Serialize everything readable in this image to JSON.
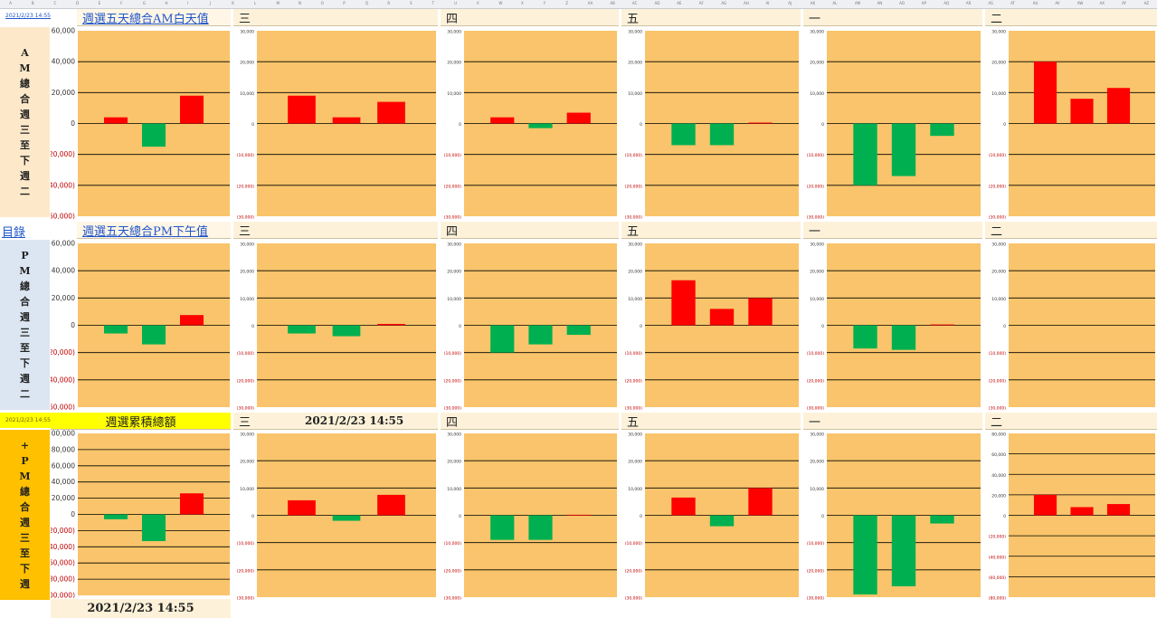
{
  "sheet": {
    "column_letters": [
      "A",
      "B",
      "C",
      "D",
      "E",
      "F",
      "G",
      "H",
      "I",
      "J",
      "K",
      "L",
      "M",
      "N",
      "O",
      "P",
      "Q",
      "R",
      "S",
      "T",
      "U",
      "V",
      "W",
      "X",
      "Y",
      "Z",
      "AA",
      "AB",
      "AC",
      "AD",
      "AE",
      "AF",
      "AG",
      "AH",
      "AI",
      "AJ",
      "AK",
      "AL",
      "AM",
      "AN",
      "AO",
      "AP",
      "AQ",
      "AR",
      "AS",
      "AT",
      "AU",
      "AV",
      "AW",
      "AX",
      "AY",
      "AZ"
    ]
  },
  "sections": [
    {
      "id": "am",
      "side_chars": [
        "A",
        "M",
        "總",
        "合",
        "週",
        "三",
        "至",
        "下",
        "週",
        "二"
      ],
      "side_bg": "#fde9c9",
      "corner_text": "2021/2/23 14:55",
      "corner_color": "#1f55c9",
      "main_title": "週選五天總合AM白天值",
      "title_bg": "#fff6e6",
      "day_labels": [
        "三",
        "四",
        "五",
        "一",
        "二"
      ]
    },
    {
      "id": "pm",
      "side_chars": [
        "P",
        "M",
        "總",
        "合",
        "週",
        "三",
        "至",
        "下",
        "週",
        "二"
      ],
      "side_bg": "#dce6f2",
      "corner_text": "目錄",
      "corner_color": "#1f55c9",
      "main_title": "週選五天總合PM下午值",
      "title_bg": "#fff6e6",
      "day_labels": [
        "三",
        "四",
        "五",
        "一",
        "二"
      ]
    },
    {
      "id": "total",
      "side_chars": [
        "+",
        "P",
        "M",
        "總",
        "合",
        "週",
        "三",
        "至",
        "下",
        "週"
      ],
      "side_bg": "#ffc000",
      "corner_text": "2021/2/23 14:55",
      "corner_color": "#7a5b00",
      "corner_bg": "#ffff00",
      "main_title": "週選累積總額",
      "title_bg": "#ffff00",
      "day_labels": [
        "三",
        "四",
        "五",
        "一",
        "二"
      ],
      "center_timestamp": "2021/2/23 14:55",
      "bottom_timestamp": "2021/2/23 14:55"
    }
  ],
  "colors": {
    "plot_bg": "#f9c46b",
    "positive": "#ff0000",
    "negative": "#00b050",
    "grid": "#000000",
    "neg_tick": "#c00000"
  },
  "chart_data": [
    {
      "id": "am-big",
      "type": "bar",
      "ylim": [
        -60000,
        60000
      ],
      "yticks": [
        60000,
        40000,
        20000,
        0,
        -20000,
        -40000,
        -60000
      ],
      "tick_labels": [
        "60,000",
        "40,000",
        "20,000",
        "0",
        "(20,000)",
        "(40,000)",
        "(60,000)"
      ],
      "values": [
        4000,
        -15000,
        18000
      ]
    },
    {
      "id": "am-wed",
      "type": "bar",
      "ylim": [
        -30000,
        30000
      ],
      "yticks": [
        30000,
        20000,
        10000,
        0,
        -10000,
        -20000,
        -30000
      ],
      "tick_labels": [
        "30,000",
        "20,000",
        "10,000",
        "0",
        "(10,000)",
        "(20,000)",
        "(30,000)"
      ],
      "values": [
        9000,
        2000,
        7000
      ]
    },
    {
      "id": "am-thu",
      "type": "bar",
      "ylim": [
        -30000,
        30000
      ],
      "yticks": [
        30000,
        20000,
        10000,
        0,
        -10000,
        -20000,
        -30000
      ],
      "tick_labels": [
        "30,000",
        "20,000",
        "10,000",
        "0",
        "(10,000)",
        "(20,000)",
        "(30,000)"
      ],
      "values": [
        2000,
        -1500,
        3500
      ]
    },
    {
      "id": "am-fri",
      "type": "bar",
      "ylim": [
        -30000,
        30000
      ],
      "yticks": [
        30000,
        20000,
        10000,
        0,
        -10000,
        -20000,
        -30000
      ],
      "tick_labels": [
        "30,000",
        "20,000",
        "10,000",
        "0",
        "(10,000)",
        "(20,000)",
        "(30,000)"
      ],
      "values": [
        -7000,
        -7000,
        300
      ]
    },
    {
      "id": "am-mon",
      "type": "bar",
      "ylim": [
        -30000,
        30000
      ],
      "yticks": [
        30000,
        20000,
        10000,
        0,
        -10000,
        -20000,
        -30000
      ],
      "tick_labels": [
        "30,000",
        "20,000",
        "10,000",
        "0",
        "(10,000)",
        "(20,000)",
        "(30,000)"
      ],
      "values": [
        -20000,
        -17000,
        -4000
      ]
    },
    {
      "id": "am-tue",
      "type": "bar",
      "ylim": [
        -30000,
        30000
      ],
      "yticks": [
        30000,
        20000,
        10000,
        0,
        -10000,
        -20000,
        -30000
      ],
      "tick_labels": [
        "30,000",
        "20,000",
        "10,000",
        "0",
        "(10,000)",
        "(20,000)",
        "(30,000)"
      ],
      "values": [
        20000,
        8000,
        11500
      ]
    },
    {
      "id": "pm-big",
      "type": "bar",
      "ylim": [
        -60000,
        60000
      ],
      "yticks": [
        60000,
        40000,
        20000,
        0,
        -20000,
        -40000,
        -60000
      ],
      "tick_labels": [
        "60,000",
        "40,000",
        "20,000",
        "0",
        "(20,000)",
        "(40,000)",
        "(60,000)"
      ],
      "values": [
        -6000,
        -14000,
        7500
      ]
    },
    {
      "id": "pm-wed",
      "type": "bar",
      "ylim": [
        -30000,
        30000
      ],
      "yticks": [
        30000,
        20000,
        10000,
        0,
        -10000,
        -20000,
        -30000
      ],
      "tick_labels": [
        "30,000",
        "20,000",
        "10,000",
        "0",
        "(10,000)",
        "(20,000)",
        "(30,000)"
      ],
      "values": [
        -3000,
        -4000,
        500
      ]
    },
    {
      "id": "pm-thu",
      "type": "bar",
      "ylim": [
        -30000,
        30000
      ],
      "yticks": [
        30000,
        20000,
        10000,
        0,
        -10000,
        -20000,
        -30000
      ],
      "tick_labels": [
        "30,000",
        "20,000",
        "10,000",
        "0",
        "(10,000)",
        "(20,000)",
        "(30,000)"
      ],
      "values": [
        -10000,
        -7000,
        -3500
      ]
    },
    {
      "id": "pm-fri",
      "type": "bar",
      "ylim": [
        -30000,
        30000
      ],
      "yticks": [
        30000,
        20000,
        10000,
        0,
        -10000,
        -20000,
        -30000
      ],
      "tick_labels": [
        "30,000",
        "20,000",
        "10,000",
        "0",
        "(10,000)",
        "(20,000)",
        "(30,000)"
      ],
      "values": [
        16500,
        6000,
        10000
      ]
    },
    {
      "id": "pm-mon",
      "type": "bar",
      "ylim": [
        -30000,
        30000
      ],
      "yticks": [
        30000,
        20000,
        10000,
        0,
        -10000,
        -20000,
        -30000
      ],
      "tick_labels": [
        "30,000",
        "20,000",
        "10,000",
        "0",
        "(10,000)",
        "(20,000)",
        "(30,000)"
      ],
      "values": [
        -8500,
        -9000,
        300
      ]
    },
    {
      "id": "pm-tue",
      "type": "bar",
      "ylim": [
        -30000,
        30000
      ],
      "yticks": [
        30000,
        20000,
        10000,
        0,
        -10000,
        -20000,
        -30000
      ],
      "tick_labels": [
        "30,000",
        "20,000",
        "10,000",
        "0",
        "(10,000)",
        "(20,000)",
        "(30,000)"
      ],
      "values": [
        0,
        0,
        0
      ]
    },
    {
      "id": "total-big",
      "type": "bar",
      "ylim": [
        -100000,
        100000
      ],
      "yticks": [
        100000,
        80000,
        60000,
        40000,
        20000,
        0,
        -20000,
        -40000,
        -60000,
        -80000,
        -100000
      ],
      "tick_labels": [
        "100,000",
        "80,000",
        "60,000",
        "40,000",
        "20,000",
        "0",
        "(20,000)",
        "(40,000)",
        "(60,000)",
        "(80,000)",
        "(100,000)"
      ],
      "values": [
        -6000,
        -33000,
        26000
      ]
    },
    {
      "id": "total-wed",
      "type": "bar",
      "ylim": [
        -30000,
        30000
      ],
      "yticks": [
        30000,
        20000,
        10000,
        0,
        -10000,
        -20000,
        -30000
      ],
      "tick_labels": [
        "30,000",
        "20,000",
        "10,000",
        "0",
        "(10,000)",
        "(20,000)",
        "(30,000)"
      ],
      "values": [
        5500,
        -2000,
        7500
      ]
    },
    {
      "id": "total-thu",
      "type": "bar",
      "ylim": [
        -30000,
        30000
      ],
      "yticks": [
        30000,
        20000,
        10000,
        0,
        -10000,
        -20000,
        -30000
      ],
      "tick_labels": [
        "30,000",
        "20,000",
        "10,000",
        "0",
        "(10,000)",
        "(20,000)",
        "(30,000)"
      ],
      "values": [
        -9000,
        -9000,
        200
      ]
    },
    {
      "id": "total-fri",
      "type": "bar",
      "ylim": [
        -30000,
        30000
      ],
      "yticks": [
        30000,
        20000,
        10000,
        0,
        -10000,
        -20000,
        -30000
      ],
      "tick_labels": [
        "30,000",
        "20,000",
        "10,000",
        "0",
        "(10,000)",
        "(20,000)",
        "(30,000)"
      ],
      "values": [
        6500,
        -4000,
        10000
      ]
    },
    {
      "id": "total-mon",
      "type": "bar",
      "ylim": [
        -30000,
        30000
      ],
      "yticks": [
        30000,
        20000,
        10000,
        0,
        -10000,
        -20000,
        -30000
      ],
      "tick_labels": [
        "30,000",
        "20,000",
        "10,000",
        "0",
        "(10,000)",
        "(20,000)",
        "(30,000)"
      ],
      "values": [
        -29000,
        -26000,
        -3000
      ]
    },
    {
      "id": "total-tue",
      "type": "bar",
      "ylim": [
        -80000,
        80000
      ],
      "yticks": [
        80000,
        60000,
        40000,
        20000,
        0,
        -20000,
        -40000,
        -60000,
        -80000
      ],
      "tick_labels": [
        "80,000",
        "60,000",
        "40,000",
        "20,000",
        "0",
        "(20,000)",
        "(40,000)",
        "(60,000)",
        "(80,000)"
      ],
      "values": [
        20000,
        8000,
        11000
      ]
    }
  ]
}
